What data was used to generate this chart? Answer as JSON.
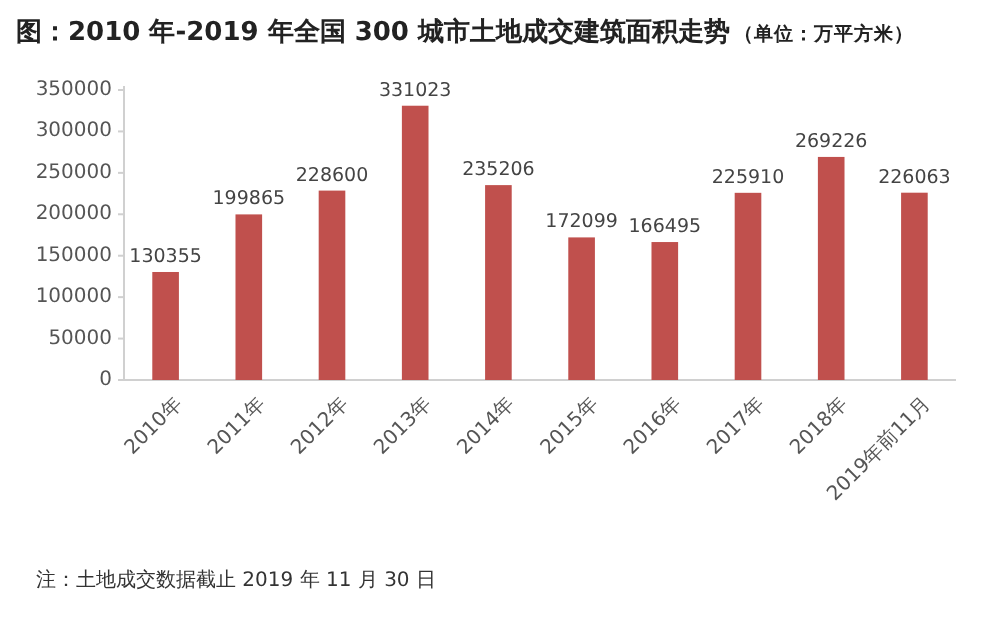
{
  "chart_data": {
    "type": "bar",
    "title": "图：2010 年-2019 年全国 300 城市土地成交建筑面积走势",
    "subtitle": "（单位：万平方米）",
    "categories": [
      "2010年",
      "2011年",
      "2012年",
      "2013年",
      "2014年",
      "2015年",
      "2016年",
      "2017年",
      "2018年",
      "2019年前11月"
    ],
    "values": [
      130355,
      199865,
      228600,
      331023,
      235206,
      172099,
      166495,
      225910,
      269226,
      226063
    ],
    "color": "#c0504d",
    "ylim": [
      0,
      350000
    ],
    "yticks": [
      0,
      50000,
      100000,
      150000,
      200000,
      250000,
      300000,
      350000
    ],
    "data_labels": true,
    "grid": false,
    "annotations": [
      "注：土地成交数据截止 2019 年 11 月 30 日"
    ]
  }
}
